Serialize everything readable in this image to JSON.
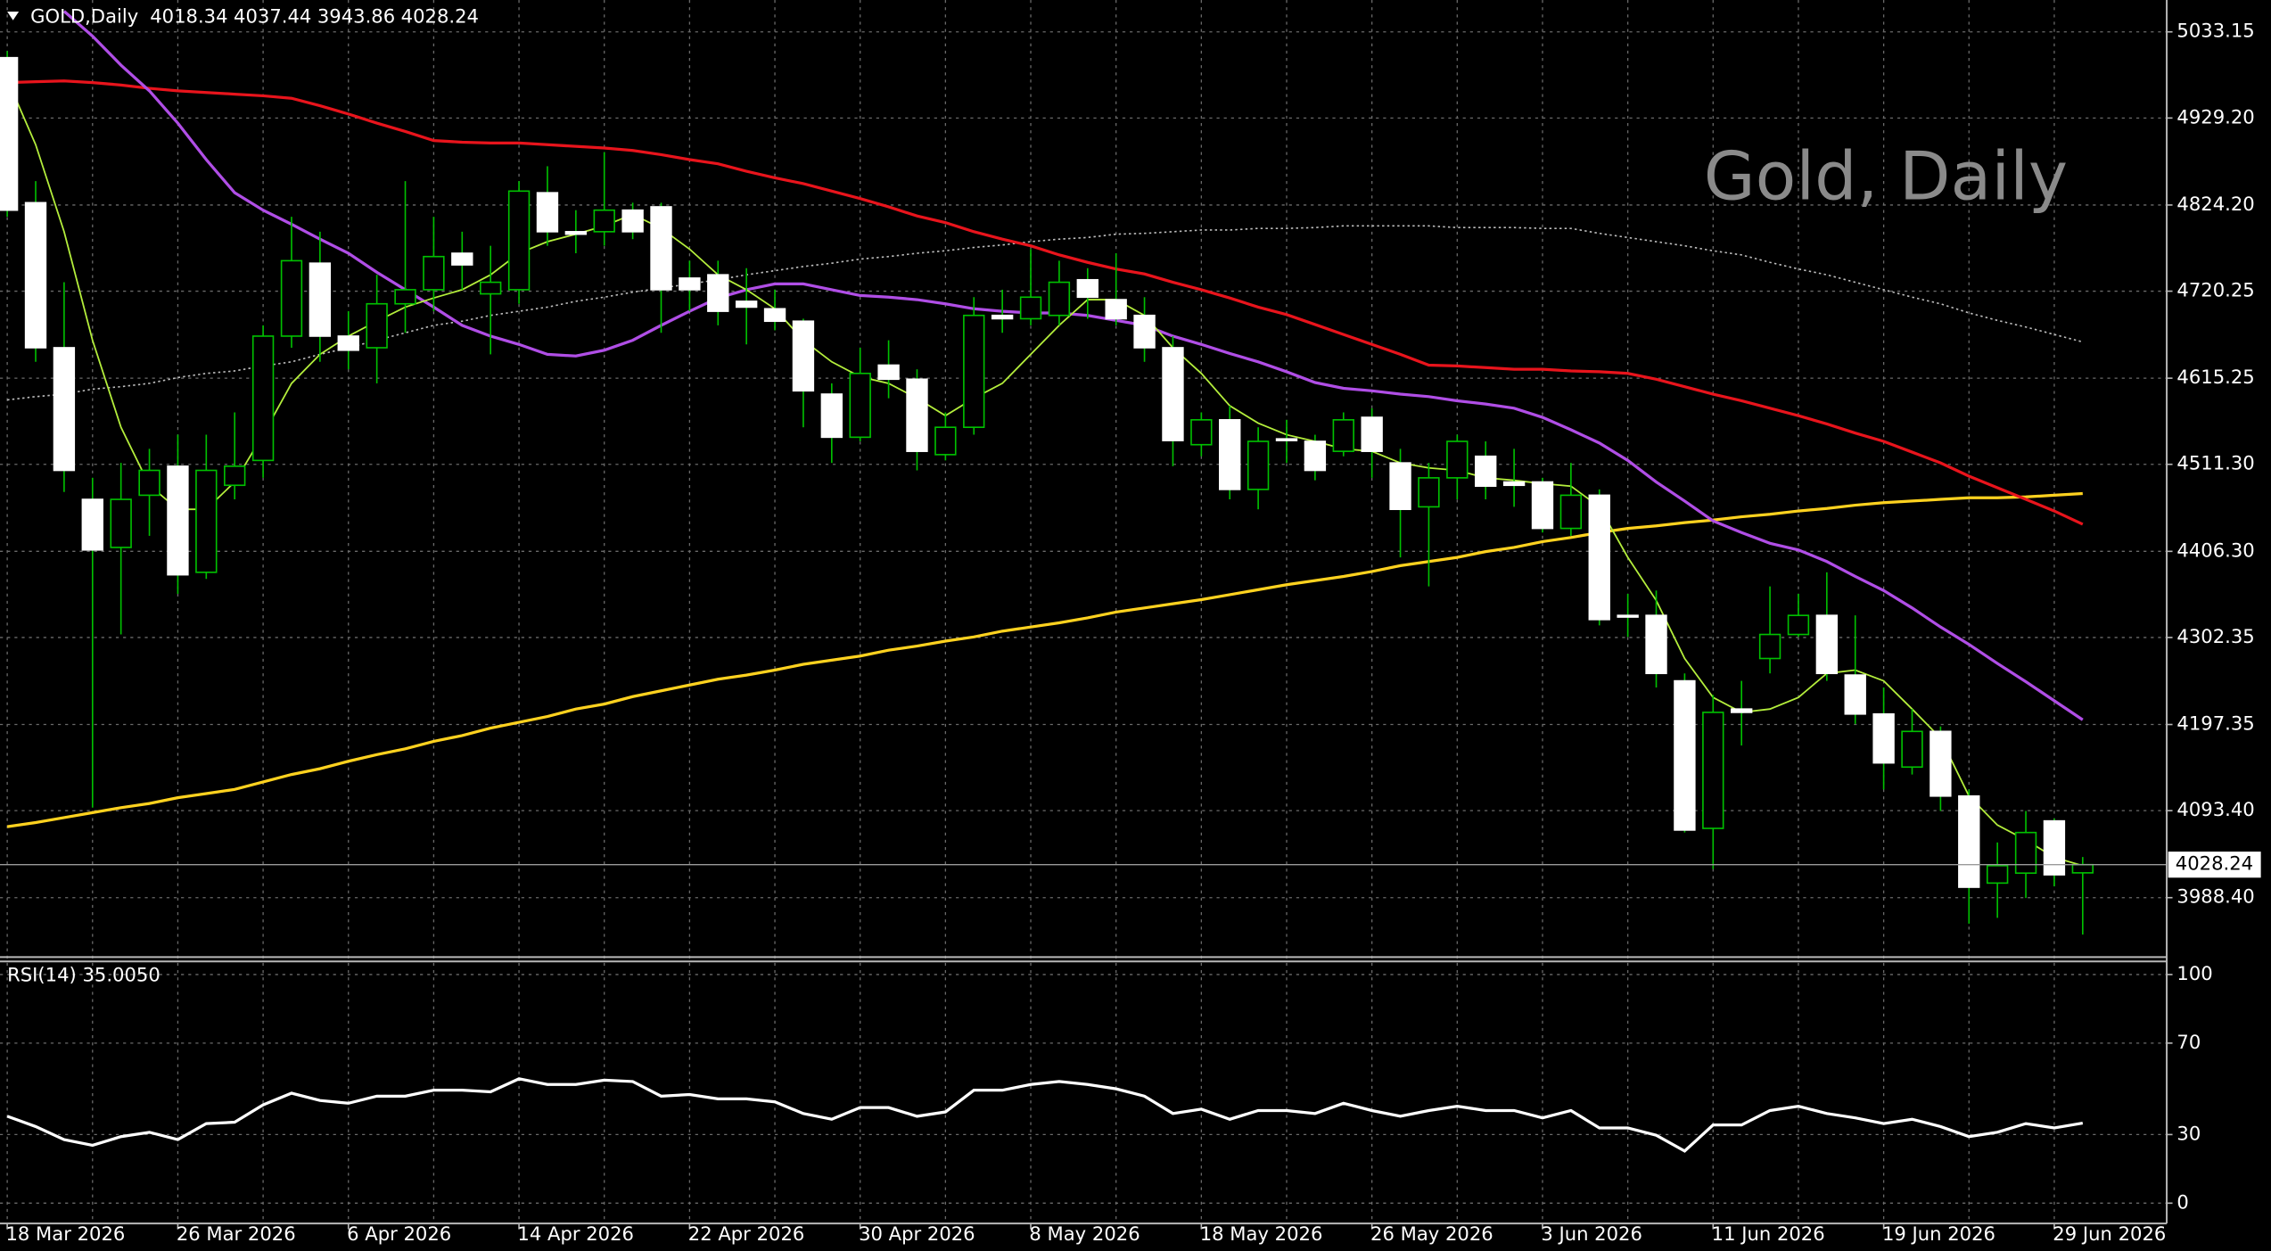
{
  "chart_data": [
    {
      "type": "candlestick",
      "symbol": "GOLD,Daily",
      "title": "Gold, Daily",
      "categories": [
        "18 Mar 2026",
        null,
        null,
        null,
        null,
        null,
        "26 Mar 2026",
        null,
        null,
        null,
        null,
        null,
        "6 Apr 2026",
        null,
        null,
        null,
        null,
        null,
        "14 Apr 2026",
        null,
        null,
        null,
        null,
        null,
        "22 Apr 2026",
        null,
        null,
        null,
        null,
        null,
        "30 Apr 2026",
        null,
        null,
        null,
        null,
        null,
        "8 May 2026",
        null,
        null,
        null,
        null,
        null,
        "18 May 2026",
        null,
        null,
        null,
        null,
        null,
        "26 May 2026",
        null,
        null,
        null,
        null,
        null,
        "3 Jun 2026",
        null,
        null,
        null,
        null,
        null,
        "11 Jun 2026",
        null,
        null,
        null,
        null,
        null,
        "19 Jun 2026",
        null,
        null,
        null,
        null,
        null,
        "29 Jun 2026",
        null
      ],
      "open": [
        5002,
        4827,
        4652,
        4469,
        4411,
        4474,
        4509,
        4381,
        4486,
        4516,
        4666,
        4754,
        4666,
        4652,
        4705,
        4722,
        4766,
        4717,
        4722,
        4839,
        4792,
        4792,
        4818,
        4822,
        4736,
        4740,
        4708,
        4699,
        4684,
        4596,
        4544,
        4631,
        4614,
        4523,
        4556,
        4691,
        4687,
        4691,
        4734,
        4710,
        4691,
        4652,
        4535,
        4565,
        4481,
        4542,
        4539,
        4527,
        4568,
        4513,
        4460,
        4495,
        4521,
        4490,
        4490,
        4434,
        4474,
        4329,
        4329,
        4250,
        4072,
        4216,
        4277,
        4306,
        4329,
        4257,
        4210,
        4146,
        4189,
        4111,
        4006,
        4018,
        4081,
        4018.34
      ],
      "high": [
        5010,
        4853,
        4731,
        4495,
        4513,
        4530,
        4547,
        4547,
        4574,
        4679,
        4810,
        4792,
        4696,
        4740,
        4853,
        4810,
        4792,
        4775,
        4853,
        4871,
        4818,
        4888,
        4827,
        4827,
        4757,
        4757,
        4748,
        4722,
        4687,
        4609,
        4652,
        4661,
        4626,
        4574,
        4713,
        4722,
        4771,
        4757,
        4748,
        4766,
        4713,
        4666,
        4574,
        4582,
        4556,
        4565,
        4547,
        4574,
        4579,
        4530,
        4513,
        4547,
        4539,
        4530,
        4495,
        4513,
        4481,
        4355,
        4359,
        4259,
        4233,
        4250,
        4364,
        4355,
        4381,
        4329,
        4242,
        4216,
        4195,
        4119,
        4055,
        4093,
        4084,
        4037.44
      ],
      "low": [
        4810,
        4635,
        4478,
        4097,
        4306,
        4425,
        4355,
        4373,
        4469,
        4495,
        4652,
        4635,
        4626,
        4609,
        4670,
        4696,
        4722,
        4644,
        4705,
        4775,
        4766,
        4775,
        4783,
        4670,
        4696,
        4679,
        4656,
        4673,
        4556,
        4513,
        4539,
        4591,
        4504,
        4516,
        4547,
        4670,
        4679,
        4679,
        4687,
        4679,
        4635,
        4509,
        4521,
        4469,
        4457,
        4513,
        4492,
        4521,
        4495,
        4399,
        4364,
        4469,
        4469,
        4460,
        4429,
        4425,
        4317,
        4303,
        4242,
        4067,
        4023,
        4172,
        4259,
        4303,
        4250,
        4198,
        4119,
        4137,
        4093,
        3957,
        3964,
        3988,
        4002,
        3943.86
      ],
      "close": [
        4818,
        4652,
        4504,
        4408,
        4469,
        4504,
        4378,
        4504,
        4509,
        4666,
        4757,
        4666,
        4649,
        4705,
        4722,
        4762,
        4752,
        4731,
        4841,
        4792,
        4789,
        4818,
        4792,
        4722,
        4722,
        4696,
        4701,
        4684,
        4600,
        4544,
        4621,
        4614,
        4527,
        4556,
        4691,
        4687,
        4713,
        4731,
        4713,
        4687,
        4652,
        4540,
        4565,
        4481,
        4539,
        4540,
        4504,
        4565,
        4527,
        4457,
        4495,
        4539,
        4485,
        4486,
        4434,
        4474,
        4324,
        4327,
        4259,
        4070,
        4212,
        4212,
        4306,
        4329,
        4259,
        4210,
        4151,
        4189,
        4111,
        4001,
        4027,
        4067,
        4016,
        4028.24
      ],
      "bull_color": "#000000",
      "bear_color": "#ffffff",
      "wick_color": "#00c000",
      "series": [
        {
          "color": "#bdbdbd",
          "style": "dotted",
          "values": [
            4589,
            4593,
            4596,
            4602,
            4605,
            4609,
            4616,
            4621,
            4624,
            4630,
            4635,
            4644,
            4652,
            4661,
            4670,
            4679,
            4684,
            4691,
            4696,
            4701,
            4708,
            4713,
            4719,
            4724,
            4729,
            4734,
            4740,
            4745,
            4750,
            4754,
            4759,
            4762,
            4766,
            4769,
            4773,
            4776,
            4780,
            4783,
            4785,
            4789,
            4790,
            4792,
            4794,
            4794,
            4796,
            4796,
            4797,
            4799,
            4799,
            4799,
            4799,
            4797,
            4797,
            4797,
            4796,
            4796,
            4790,
            4785,
            4780,
            4775,
            4769,
            4764,
            4755,
            4747,
            4740,
            4731,
            4722,
            4713,
            4705,
            4694,
            4685,
            4677,
            4668,
            4659
          ]
        },
        {
          "color": "#ffd21f",
          "style": "solid",
          "values": [
            4074,
            4079,
            4085,
            4091,
            4097,
            4102,
            4109,
            4114,
            4119,
            4128,
            4137,
            4144,
            4153,
            4161,
            4168,
            4177,
            4184,
            4193,
            4200,
            4207,
            4216,
            4222,
            4231,
            4238,
            4245,
            4252,
            4257,
            4263,
            4270,
            4275,
            4280,
            4287,
            4292,
            4298,
            4303,
            4310,
            4315,
            4320,
            4326,
            4333,
            4338,
            4343,
            4348,
            4354,
            4360,
            4366,
            4371,
            4376,
            4382,
            4389,
            4394,
            4399,
            4406,
            4411,
            4418,
            4423,
            4429,
            4434,
            4437,
            4441,
            4444,
            4448,
            4451,
            4455,
            4458,
            4462,
            4465,
            4467,
            4469,
            4471,
            4471,
            4472,
            4474,
            4476
          ]
        },
        {
          "color": "#e8141c",
          "style": "solid",
          "values": [
            4972,
            4973,
            4974,
            4972,
            4969,
            4965,
            4962,
            4960,
            4958,
            4956,
            4953,
            4944,
            4934,
            4923,
            4913,
            4902,
            4900,
            4899,
            4899,
            4897,
            4895,
            4893,
            4890,
            4885,
            4879,
            4874,
            4865,
            4857,
            4850,
            4841,
            4832,
            4822,
            4811,
            4803,
            4792,
            4783,
            4775,
            4764,
            4755,
            4747,
            4741,
            4731,
            4722,
            4712,
            4701,
            4692,
            4680,
            4668,
            4656,
            4644,
            4631,
            4630,
            4628,
            4626,
            4626,
            4624,
            4623,
            4621,
            4614,
            4605,
            4596,
            4588,
            4579,
            4570,
            4560,
            4549,
            4539,
            4526,
            4513,
            4497,
            4483,
            4469,
            4455,
            4439
          ]
        },
        {
          "color": "#b04ee6",
          "style": "solid",
          "values": [
            null,
            null,
            5058,
            5028,
            4993,
            4962,
            4923,
            4879,
            4839,
            4818,
            4801,
            4783,
            4766,
            4743,
            4722,
            4701,
            4679,
            4666,
            4656,
            4644,
            4642,
            4649,
            4661,
            4679,
            4696,
            4712,
            4722,
            4729,
            4729,
            4722,
            4715,
            4713,
            4710,
            4705,
            4699,
            4696,
            4694,
            4694,
            4691,
            4685,
            4679,
            4666,
            4656,
            4645,
            4635,
            4623,
            4610,
            4603,
            4600,
            4596,
            4593,
            4588,
            4584,
            4579,
            4568,
            4553,
            4537,
            4516,
            4490,
            4467,
            4443,
            4429,
            4416,
            4408,
            4394,
            4376,
            4359,
            4338,
            4315,
            4294,
            4271,
            4249,
            4226,
            4203
          ]
        },
        {
          "color": "#b4ee3c",
          "style": "thin",
          "values": [
            4976,
            4897,
            4792,
            4661,
            4556,
            4486,
            4457,
            4457,
            4490,
            4547,
            4609,
            4644,
            4666,
            4684,
            4701,
            4712,
            4722,
            4740,
            4766,
            4780,
            4789,
            4799,
            4813,
            4796,
            4771,
            4740,
            4722,
            4699,
            4661,
            4635,
            4617,
            4609,
            4591,
            4570,
            4591,
            4609,
            4644,
            4679,
            4710,
            4710,
            4691,
            4652,
            4621,
            4582,
            4561,
            4547,
            4539,
            4530,
            4527,
            4513,
            4507,
            4504,
            4495,
            4492,
            4488,
            4485,
            4460,
            4399,
            4347,
            4277,
            4230,
            4212,
            4216,
            4230,
            4259,
            4263,
            4250,
            4216,
            4181,
            4111,
            4076,
            4058,
            4037,
            4027
          ]
        }
      ],
      "ylim": [
        3916.7,
        5071.6
      ],
      "yticks": [
        5033.15,
        {
          "value": 4929.2,
          "label": "4929.20"
        },
        {
          "value": 4824.2,
          "label": "4824.20"
        },
        4720.25,
        4615.25,
        {
          "value": 4511.3,
          "label": "4511.30"
        },
        {
          "value": 4406.3,
          "label": "4406.30"
        },
        4302.35,
        4197.35,
        {
          "value": 4093.4,
          "label": "4093.40"
        },
        {
          "value": 3988.4,
          "label": "3988.40"
        }
      ],
      "grid": true
    },
    {
      "type": "line",
      "title": "RSI(14) 35.0050",
      "series": [
        {
          "color": "#ffffff",
          "style": "solid",
          "values": [
            38.0,
            33.5,
            27.8,
            25.3,
            29.1,
            31.0,
            27.8,
            34.8,
            35.4,
            43.0,
            48.1,
            44.9,
            43.7,
            46.8,
            46.8,
            49.4,
            49.4,
            48.7,
            54.4,
            51.9,
            51.9,
            53.8,
            53.2,
            46.8,
            47.5,
            45.6,
            45.6,
            44.3,
            39.2,
            36.7,
            41.8,
            41.8,
            38.0,
            39.9,
            49.4,
            49.4,
            51.9,
            53.2,
            51.9,
            50.0,
            46.8,
            39.2,
            41.1,
            36.7,
            40.5,
            40.5,
            39.2,
            43.7,
            40.5,
            38.0,
            40.5,
            42.4,
            40.5,
            40.5,
            37.3,
            40.5,
            32.9,
            32.9,
            29.7,
            22.8,
            34.2,
            34.2,
            40.5,
            42.4,
            39.2,
            37.3,
            34.8,
            36.7,
            33.5,
            29.1,
            31.0,
            34.8,
            32.9,
            35.005
          ]
        }
      ],
      "ylim": [
        -8.9,
        105.1
      ],
      "yticks": [
        100,
        70,
        30,
        0
      ],
      "grid": true
    }
  ]
}
